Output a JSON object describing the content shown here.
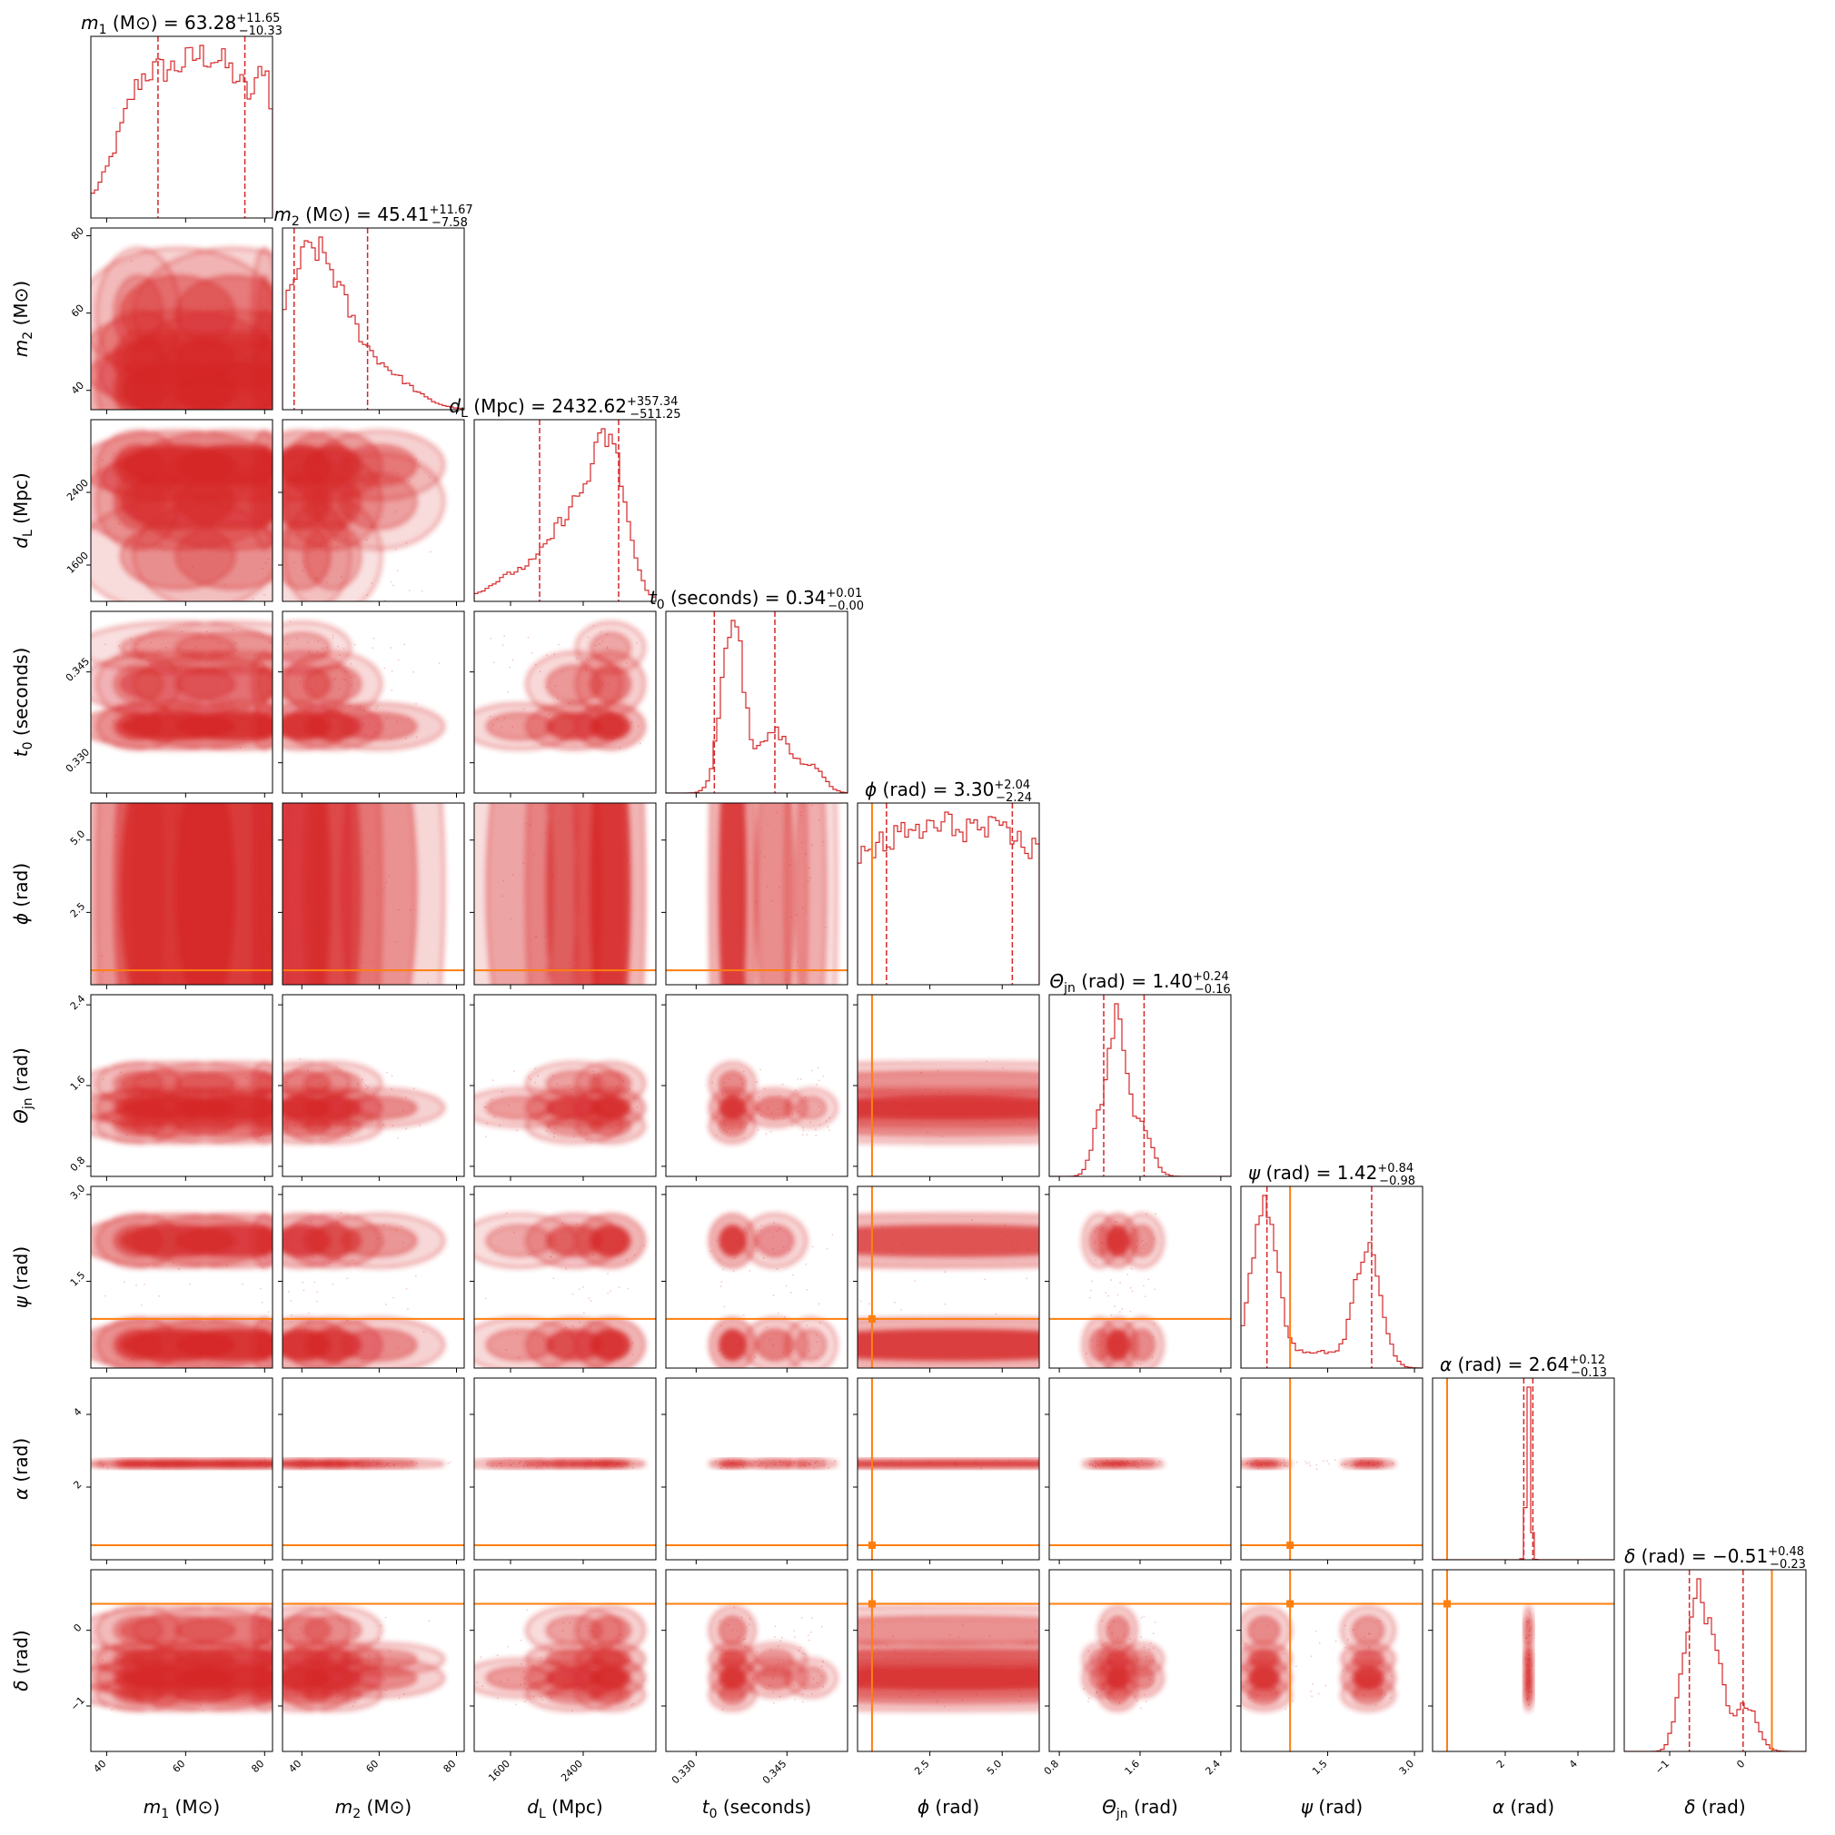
{
  "chart_data": {
    "type": "corner",
    "colors": {
      "posterior": "#d62728",
      "truth": "#ff7f0e",
      "grid": "#000000"
    },
    "params": [
      {
        "id": "m1",
        "label_sym": "m",
        "label_sub": "1",
        "unit": "(M⊙)",
        "range": [
          36,
          82
        ],
        "ticks": [
          40,
          60,
          80
        ],
        "tick_labels": [
          "40",
          "60",
          "80"
        ],
        "title_sym": "m",
        "title_sub": "1",
        "title_unit": "(M⊙)",
        "median": "63.28",
        "plus": "+11.65",
        "minus": "−10.33"
      },
      {
        "id": "m2",
        "label_sym": "m",
        "label_sub": "2",
        "unit": "(M⊙)",
        "range": [
          35,
          82
        ],
        "ticks": [
          40,
          60,
          80
        ],
        "tick_labels": [
          "40",
          "60",
          "80"
        ],
        "title_sym": "m",
        "title_sub": "2",
        "title_unit": "(M⊙)",
        "median": "45.41",
        "plus": "+11.67",
        "minus": "−7.58"
      },
      {
        "id": "dL",
        "label_sym": "d",
        "label_sub": "L",
        "unit": "(Mpc)",
        "range": [
          1200,
          3200
        ],
        "ticks": [
          1600,
          2400
        ],
        "tick_labels": [
          "1600",
          "2400"
        ],
        "title_sym": "d",
        "title_sub": "L",
        "title_unit": "(Mpc)",
        "median": "2432.62",
        "plus": "+357.34",
        "minus": "−511.25"
      },
      {
        "id": "t0",
        "label_sym": "t",
        "label_sub": "0",
        "unit": "(seconds)",
        "range": [
          0.325,
          0.355
        ],
        "ticks": [
          0.33,
          0.345
        ],
        "tick_labels": [
          "0.330",
          "0.345"
        ],
        "title_sym": "t",
        "title_sub": "0",
        "title_unit": "(seconds)",
        "median": "0.34",
        "plus": "+0.01",
        "minus": "−0.00"
      },
      {
        "id": "phi",
        "label_sym": "ϕ",
        "label_sub": "",
        "unit": "(rad)",
        "range": [
          0,
          6.28
        ],
        "ticks": [
          2.5,
          5.0
        ],
        "tick_labels": [
          "2.5",
          "5.0"
        ],
        "title_sym": "ϕ",
        "title_sub": "",
        "title_unit": "(rad)",
        "median": "3.30",
        "plus": "+2.04",
        "minus": "−2.24"
      },
      {
        "id": "theta",
        "label_sym": "Θ",
        "label_sub": "jn",
        "unit": "(rad)",
        "range": [
          0.7,
          2.5
        ],
        "ticks": [
          0.8,
          1.6,
          2.4
        ],
        "tick_labels": [
          "0.8",
          "1.6",
          "2.4"
        ],
        "title_sym": "Θ",
        "title_sub": "jn",
        "title_unit": "(rad)",
        "median": "1.40",
        "plus": "+0.24",
        "minus": "−0.16"
      },
      {
        "id": "psi",
        "label_sym": "ψ",
        "label_sub": "",
        "unit": "(rad)",
        "range": [
          0,
          3.14
        ],
        "ticks": [
          1.5,
          3.0
        ],
        "tick_labels": [
          "1.5",
          "3.0"
        ],
        "title_sym": "ψ",
        "title_sub": "",
        "title_unit": "(rad)",
        "median": "1.42",
        "plus": "+0.84",
        "minus": "−0.98"
      },
      {
        "id": "alpha",
        "label_sym": "α",
        "label_sub": "",
        "unit": "(rad)",
        "range": [
          0,
          5
        ],
        "ticks": [
          2,
          4
        ],
        "tick_labels": [
          "2",
          "4"
        ],
        "title_sym": "α",
        "title_sub": "",
        "title_unit": "(rad)",
        "median": "2.64",
        "plus": "+0.12",
        "minus": "−0.13"
      },
      {
        "id": "delta",
        "label_sym": "δ",
        "label_sub": "",
        "unit": "(rad)",
        "range": [
          -1.6,
          0.8
        ],
        "ticks": [
          -1,
          0
        ],
        "tick_labels": [
          "−1",
          "0"
        ],
        "title_sym": "δ",
        "title_sub": "",
        "title_unit": "(rad)",
        "median": "−0.51",
        "plus": "+0.48",
        "minus": "−0.23"
      }
    ],
    "truths": [
      null,
      null,
      null,
      null,
      0.5,
      null,
      0.85,
      0.4,
      0.35
    ],
    "quantiles": [
      [
        53.0,
        75.0
      ],
      [
        38.0,
        57.0
      ],
      [
        1920,
        2790
      ],
      [
        0.333,
        0.343
      ],
      [
        1.0,
        5.35
      ],
      [
        1.24,
        1.64
      ],
      [
        0.45,
        2.26
      ],
      [
        2.51,
        2.76
      ],
      [
        -0.74,
        -0.03
      ]
    ],
    "posterior_modes": [
      [
        [
          58,
          0.9,
          12
        ],
        [
          72,
          0.9,
          12
        ],
        [
          80,
          0.55,
          1.5
        ],
        [
          48,
          0.5,
          5
        ]
      ],
      [
        [
          40,
          0.9,
          6
        ],
        [
          48,
          0.6,
          6
        ],
        [
          60,
          0.3,
          8
        ]
      ],
      [
        [
          2700,
          1.0,
          180
        ],
        [
          2300,
          0.6,
          250
        ],
        [
          1700,
          0.2,
          300
        ]
      ],
      [
        [
          0.336,
          1.0,
          0.0018
        ],
        [
          0.343,
          0.35,
          0.0025
        ],
        [
          0.349,
          0.15,
          0.002
        ]
      ],
      [
        [
          3.3,
          0.82,
          5.0
        ]
      ],
      [
        [
          1.38,
          1.0,
          0.09
        ],
        [
          1.62,
          0.3,
          0.1
        ],
        [
          1.2,
          0.3,
          0.08
        ]
      ],
      [
        [
          0.4,
          1.0,
          0.22
        ],
        [
          2.2,
          0.75,
          0.22
        ],
        [
          1.3,
          0.1,
          0.5
        ]
      ],
      [
        [
          2.64,
          1.0,
          0.06
        ]
      ],
      [
        [
          -0.63,
          1.0,
          0.12
        ],
        [
          -0.38,
          0.55,
          0.1
        ],
        [
          0.0,
          0.3,
          0.15
        ],
        [
          -0.85,
          0.3,
          0.1
        ]
      ]
    ]
  }
}
